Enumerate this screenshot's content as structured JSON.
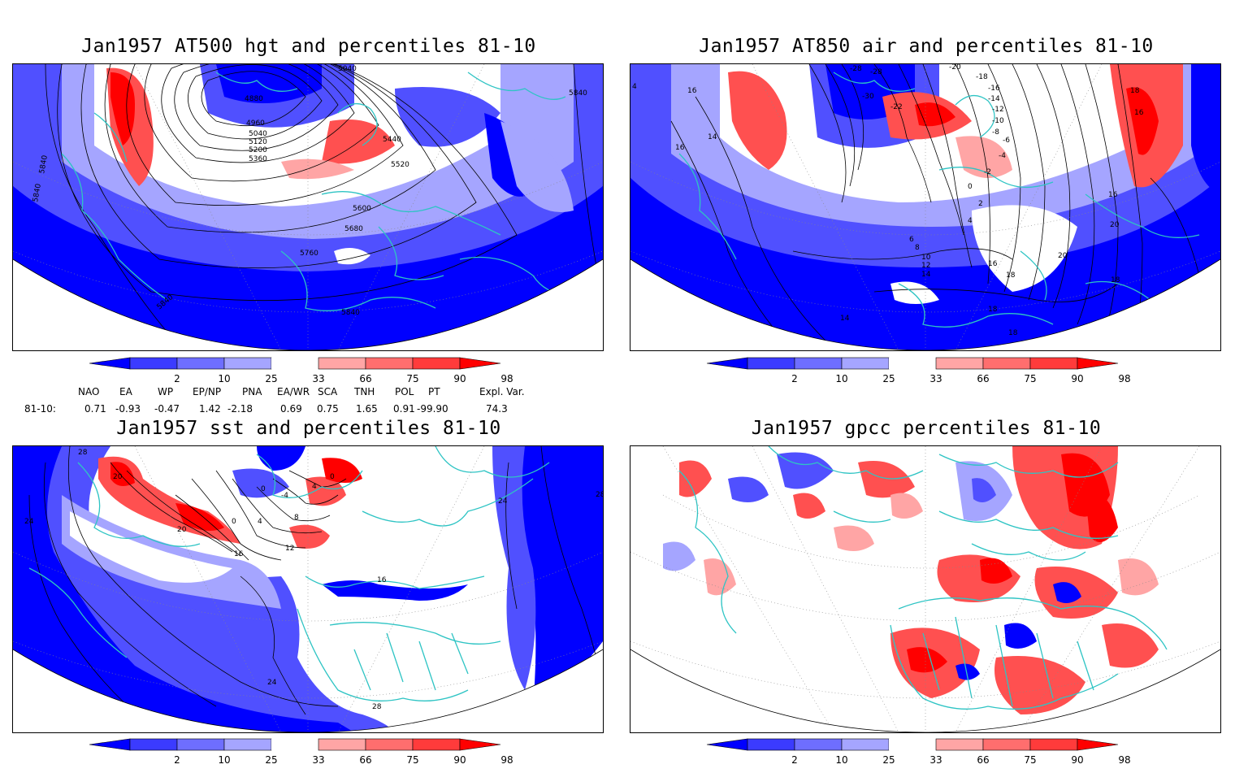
{
  "panels": [
    {
      "title": "Jan1957 AT500 hgt and percentiles 81-10",
      "contour_labels": [
        "5040",
        "4880",
        "4960",
        "5040",
        "5120",
        "5200",
        "5360",
        "5440",
        "5520",
        "5600",
        "5680",
        "5760",
        "5840",
        "5840",
        "5840",
        "5840",
        "5840"
      ]
    },
    {
      "title": "Jan1957 AT850 air and percentiles 81-10",
      "contour_labels": [
        "-28",
        "-28",
        "-30",
        "-22",
        "-20",
        "-18",
        "-16",
        "-14",
        "-12",
        "-10",
        "-8",
        "-6",
        "-4",
        "-2",
        "0",
        "2",
        "4",
        "6",
        "8",
        "10",
        "12",
        "14",
        "16",
        "14",
        "16",
        "16",
        "18",
        "20",
        "16",
        "18",
        "18",
        "18",
        "18",
        "14",
        "4",
        "16",
        "20"
      ]
    },
    {
      "title": "Jan1957 sst and percentiles 81-10",
      "contour_labels": [
        "28",
        "20",
        "0",
        "0",
        "4",
        "8",
        "12",
        "16",
        "20",
        "24",
        "24",
        "28",
        "24",
        "28",
        "4",
        "16",
        "-4",
        "0"
      ]
    },
    {
      "title": "Jan1957 gpcc percentiles 81-10",
      "contour_labels": []
    }
  ],
  "colorbar": {
    "labels": [
      "2",
      "10",
      "25",
      "33",
      "66",
      "75",
      "90",
      "98"
    ],
    "colors": [
      "#0000ff",
      "#3b3bff",
      "#6e6eff",
      "#a5a5ff",
      "#ffffff",
      "#ffa5a5",
      "#ff6e6e",
      "#ff3b3b",
      "#ff0000"
    ]
  },
  "indices": {
    "headers": [
      "NAO",
      "EA",
      "WP",
      "EP/NP",
      "PNA",
      "EA/WR",
      "SCA",
      "TNH",
      "POL",
      "PT",
      "Expl. Var."
    ],
    "row_label": "81-10:",
    "values": [
      "0.71",
      "-0.93",
      "-0.47",
      "1.42",
      "-2.18",
      "0.69",
      "0.75",
      "1.65",
      "0.91",
      "-99.90",
      "74.3"
    ]
  },
  "colors": {
    "land_outline": "#2ec4c4",
    "deep_blue": "#0000ff",
    "mid_blue": "#5050ff",
    "light_blue": "#a5a5ff",
    "light_red": "#ffa5a5",
    "mid_red": "#ff5050",
    "deep_red": "#ff0000"
  }
}
